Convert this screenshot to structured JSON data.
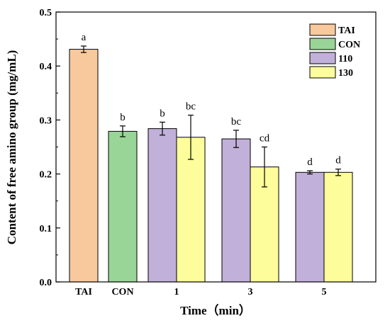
{
  "chart_data": {
    "type": "bar",
    "xlabel": "Time（min）",
    "ylabel": "Content of  free amino group (mg/mL)",
    "ylim": [
      0,
      0.5
    ],
    "yticks": [
      "0.0",
      "0.1",
      "0.2",
      "0.3",
      "0.4",
      "0.5"
    ],
    "categories": [
      "TAI",
      "CON",
      "1",
      "3",
      "5"
    ],
    "legend_position": "top-right",
    "grid": false,
    "series": [
      {
        "name": "TAI",
        "color": "#f8c99c",
        "values": [
          0.431,
          null,
          null,
          null,
          null
        ],
        "errors": [
          0.006,
          null,
          null,
          null,
          null
        ],
        "letters": [
          "a",
          "",
          "",
          "",
          ""
        ]
      },
      {
        "name": "CON",
        "color": "#99d597",
        "values": [
          null,
          0.279,
          null,
          null,
          null
        ],
        "errors": [
          null,
          0.01,
          null,
          null,
          null
        ],
        "letters": [
          "",
          "b",
          "",
          "",
          ""
        ]
      },
      {
        "name": "110",
        "color": "#c1b0d9",
        "values": [
          null,
          null,
          0.284,
          0.265,
          0.203
        ],
        "errors": [
          null,
          null,
          0.012,
          0.016,
          0.003
        ],
        "letters": [
          "",
          "",
          "b",
          "bc",
          "d"
        ]
      },
      {
        "name": "130",
        "color": "#fdfd9b",
        "values": [
          null,
          null,
          0.268,
          0.213,
          0.203
        ],
        "errors": [
          null,
          null,
          0.041,
          0.037,
          0.006
        ],
        "letters": [
          "",
          "",
          "bc",
          "cd",
          "d"
        ]
      }
    ]
  }
}
